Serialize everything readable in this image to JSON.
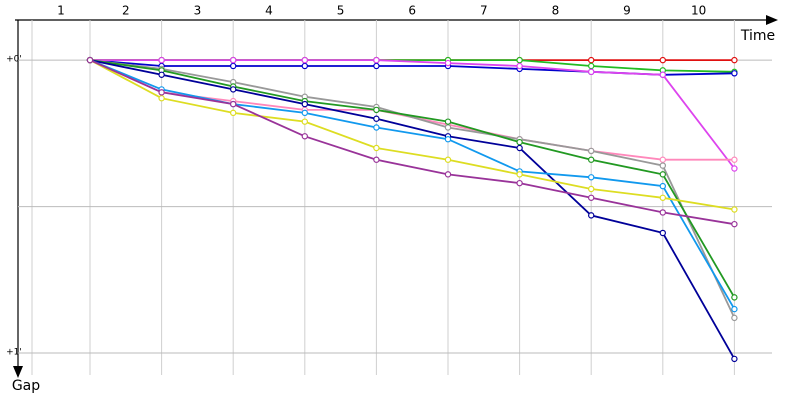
{
  "chart_data": {
    "type": "line",
    "x_label": "Time",
    "y_label": "Gap",
    "categories": [
      "1",
      "2",
      "3",
      "4",
      "5",
      "6",
      "7",
      "8",
      "9",
      "10"
    ],
    "ylim": [
      -0.137,
      1.075
    ],
    "yticks": [
      {
        "value": 0,
        "label": "+0'"
      },
      {
        "value": 0.5,
        "label": null
      },
      {
        "value": 1,
        "label": "+1'"
      }
    ],
    "grid": true,
    "series": [
      {
        "name": "Red",
        "color": "#e01010",
        "values": [
          0,
          0,
          0,
          0,
          0,
          0,
          0,
          0,
          0,
          0
        ]
      },
      {
        "name": "Light green",
        "color": "#22bb22",
        "values": [
          0,
          0,
          0,
          0,
          0,
          0,
          0,
          0.02,
          0.035,
          0.04
        ]
      },
      {
        "name": "Blue",
        "color": "#0000cc",
        "values": [
          0,
          0.02,
          0.02,
          0.02,
          0.02,
          0.02,
          0.03,
          0.04,
          0.05,
          0.045
        ]
      },
      {
        "name": "Magenta",
        "color": "#dd44ee",
        "values": [
          0,
          0,
          0,
          0,
          0,
          0.01,
          0.02,
          0.04,
          0.05,
          0.37
        ]
      },
      {
        "name": "Pink",
        "color": "#ff88bb",
        "values": [
          0,
          0.11,
          0.14,
          0.17,
          0.17,
          0.22,
          0.27,
          0.31,
          0.34,
          0.34
        ]
      },
      {
        "name": "Gray",
        "color": "#999999",
        "values": [
          0,
          0.03,
          0.075,
          0.125,
          0.16,
          0.23,
          0.27,
          0.31,
          0.36,
          0.88
        ]
      },
      {
        "name": "Green",
        "color": "#229922",
        "values": [
          0,
          0.035,
          0.09,
          0.14,
          0.17,
          0.21,
          0.28,
          0.34,
          0.39,
          0.81
        ]
      },
      {
        "name": "Navy",
        "color": "#000099",
        "values": [
          0,
          0.05,
          0.1,
          0.15,
          0.2,
          0.26,
          0.3,
          0.53,
          0.59,
          1.02
        ]
      },
      {
        "name": "Light blue",
        "color": "#1199ee",
        "values": [
          0,
          0.1,
          0.15,
          0.18,
          0.23,
          0.27,
          0.38,
          0.4,
          0.43,
          0.85
        ]
      },
      {
        "name": "Yellow",
        "color": "#dddd22",
        "values": [
          0,
          0.13,
          0.18,
          0.21,
          0.3,
          0.34,
          0.39,
          0.44,
          0.47,
          0.51
        ]
      },
      {
        "name": "Purple",
        "color": "#993399",
        "values": [
          0,
          0.11,
          0.15,
          0.26,
          0.34,
          0.39,
          0.42,
          0.47,
          0.52,
          0.56
        ]
      }
    ]
  }
}
